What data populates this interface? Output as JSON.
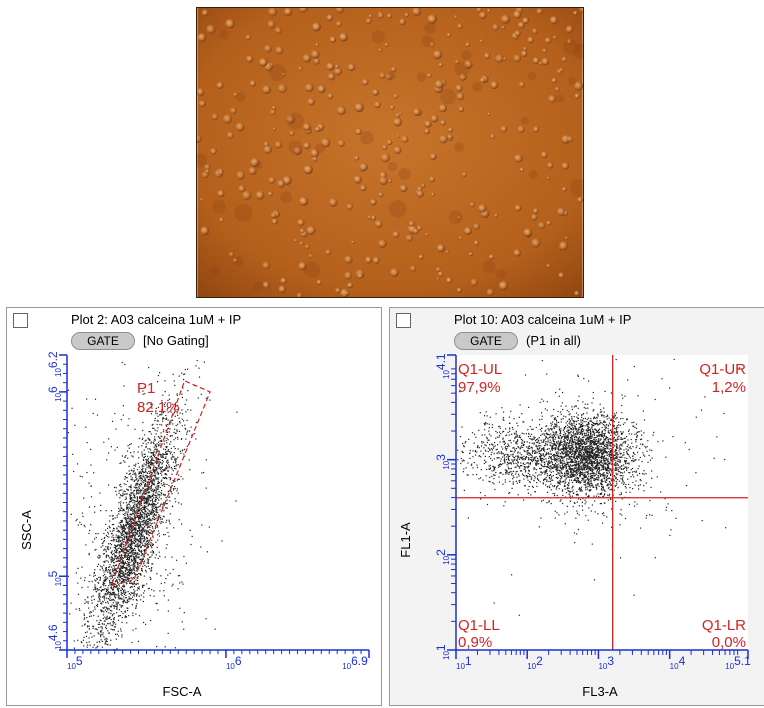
{
  "colors": {
    "axis": "#1a2fd6",
    "gate": "#d22222",
    "dots": "#222222",
    "micro_bg": "#b8641f"
  },
  "micrograph": {
    "description_icon": "cell-micrograph-image"
  },
  "plot2": {
    "title": "Plot 2: A03 calceina 1uM + IP",
    "gate_button": "GATE",
    "gating": "[No Gating]",
    "gate_name": "P1",
    "gate_percent": "82,1%"
  },
  "plot10": {
    "title": "Plot 10: A03 calceina 1uM + IP",
    "gate_button": "GATE",
    "gating": "(P1 in all)",
    "quadrants": {
      "ul": {
        "name": "Q1-UL",
        "percent": "97,9%"
      },
      "ur": {
        "name": "Q1-UR",
        "percent": "1,2%"
      },
      "ll": {
        "name": "Q1-LL",
        "percent": "0,9%"
      },
      "lr": {
        "name": "Q1-LR",
        "percent": "0,0%"
      }
    }
  },
  "chart_data": [
    {
      "type": "scatter",
      "xlabel": "FSC-A",
      "ylabel": "SSC-A",
      "xscale": "log",
      "yscale": "log",
      "xlim_exp": [
        5,
        6.9
      ],
      "ylim_exp": [
        4.6,
        6.2
      ],
      "x_tick_labels": [
        "10^5",
        "10^6",
        "10^6.9"
      ],
      "y_tick_labels": [
        "10^4.6",
        "10^5",
        "10^6",
        "10^6.2"
      ],
      "population": {
        "center_exp": [
          5.42,
          5.25
        ],
        "direction": "diagonal-up-right"
      },
      "gate": {
        "name": "P1",
        "percent": "82,1%",
        "shape": "polygon",
        "vertices_exp": [
          [
            5.28,
            4.95
          ],
          [
            5.42,
            4.98
          ],
          [
            5.9,
            6.0
          ],
          [
            5.74,
            6.06
          ]
        ]
      }
    },
    {
      "type": "scatter",
      "xlabel": "FL3-A",
      "ylabel": "FL1-A",
      "xscale": "log",
      "yscale": "log",
      "xlim_exp": [
        1,
        5.1
      ],
      "ylim_exp": [
        1,
        4.1
      ],
      "x_tick_labels": [
        "10^1",
        "10^2",
        "10^3",
        "10^4",
        "10^5.1"
      ],
      "y_tick_labels": [
        "10^1",
        "10^2",
        "10^3",
        "10^4.1"
      ],
      "population": {
        "center_exp": [
          2.85,
          3.05
        ]
      },
      "quadrant_divider_exp": {
        "x": 3.2,
        "y": 2.6
      },
      "quadrants": [
        {
          "name": "Q1-UL",
          "percent": "97,9%"
        },
        {
          "name": "Q1-UR",
          "percent": "1,2%"
        },
        {
          "name": "Q1-LL",
          "percent": "0,9%"
        },
        {
          "name": "Q1-LR",
          "percent": "0,0%"
        }
      ]
    }
  ]
}
